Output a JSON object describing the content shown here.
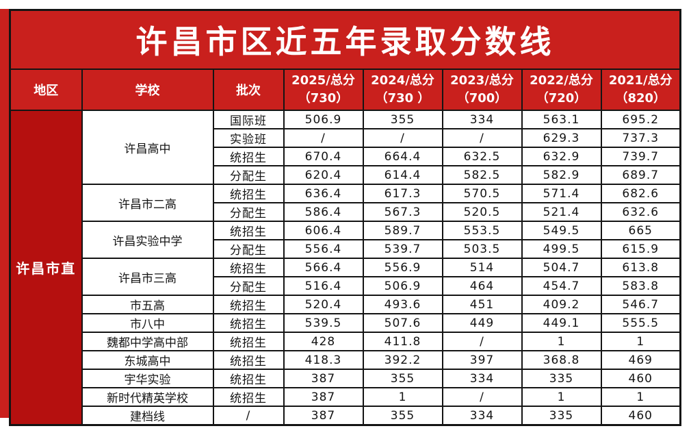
{
  "title": "许昌市区近五年录取分数线",
  "colors": {
    "background_red": "#c9201d",
    "region_cell_red": "#b5100f",
    "border_black": "#141414",
    "cell_white": "#ffffff"
  },
  "table": {
    "region_header": "地区",
    "school_header": "学校",
    "batch_header": "批次",
    "year_headers": [
      {
        "line1": "2025/总分",
        "line2": "（730）"
      },
      {
        "line1": "2024/总分",
        "line2": "（730 ）"
      },
      {
        "line1": "2023/总分",
        "line2": "（700）"
      },
      {
        "line1": "2022/总分",
        "line2": "（720）"
      },
      {
        "line1": "2021/总分",
        "line2": "（820）"
      }
    ],
    "region": "许昌市直",
    "groups": [
      {
        "school": "许昌高中",
        "rows": [
          {
            "batch": "国际班",
            "values": [
              "506.9",
              "355",
              "334",
              "563.1",
              "695.2"
            ]
          },
          {
            "batch": "实验班",
            "values": [
              "/",
              "/",
              "/",
              "629.3",
              "737.3"
            ]
          },
          {
            "batch": "统招生",
            "values": [
              "670.4",
              "664.4",
              "632.5",
              "632.9",
              "739.7"
            ]
          },
          {
            "batch": "分配生",
            "values": [
              "620.4",
              "614.4",
              "582.5",
              "582.9",
              "689.7"
            ]
          }
        ]
      },
      {
        "school": "许昌市二高",
        "rows": [
          {
            "batch": "统招生",
            "values": [
              "636.4",
              "617.3",
              "570.5",
              "571.4",
              "682.6"
            ]
          },
          {
            "batch": "分配生",
            "values": [
              "586.4",
              "567.3",
              "520.5",
              "521.4",
              "632.6"
            ]
          }
        ]
      },
      {
        "school": "许昌实验中学",
        "rows": [
          {
            "batch": "统招生",
            "values": [
              "606.4",
              "589.7",
              "553.5",
              "549.5",
              "665"
            ]
          },
          {
            "batch": "分配生",
            "values": [
              "556.4",
              "539.7",
              "503.5",
              "499.5",
              "615.9"
            ]
          }
        ]
      },
      {
        "school": "许昌市三高",
        "rows": [
          {
            "batch": "统招生",
            "values": [
              "566.4",
              "556.9",
              "514",
              "504.7",
              "613.8"
            ]
          },
          {
            "batch": "分配生",
            "values": [
              "516.4",
              "506.9",
              "464",
              "454.7",
              "583.8"
            ]
          }
        ]
      },
      {
        "school": "市五高",
        "rows": [
          {
            "batch": "统招生",
            "values": [
              "520.4",
              "493.6",
              "451",
              "409.2",
              "546.7"
            ]
          }
        ]
      },
      {
        "school": "市八中",
        "rows": [
          {
            "batch": "统招生",
            "values": [
              "539.5",
              "507.6",
              "449",
              "449.1",
              "555.5"
            ]
          }
        ]
      },
      {
        "school": "魏都中学高中部",
        "rows": [
          {
            "batch": "统招生",
            "values": [
              "428",
              "411.8",
              "/",
              "1",
              "1"
            ]
          }
        ]
      },
      {
        "school": "东城高中",
        "rows": [
          {
            "batch": "统招生",
            "values": [
              "418.3",
              "392.2",
              "397",
              "368.8",
              "469"
            ]
          }
        ]
      },
      {
        "school": "宇华实验",
        "rows": [
          {
            "batch": "统招生",
            "values": [
              "387",
              "355",
              "334",
              "335",
              "460"
            ]
          }
        ]
      },
      {
        "school": "新时代精英学校",
        "rows": [
          {
            "batch": "统招生",
            "values": [
              "387",
              "1",
              "/",
              "1",
              "1"
            ]
          }
        ]
      },
      {
        "school": "建档线",
        "rows": [
          {
            "batch": "/",
            "values": [
              "387",
              "355",
              "334",
              "335",
              "460"
            ]
          }
        ]
      }
    ]
  }
}
